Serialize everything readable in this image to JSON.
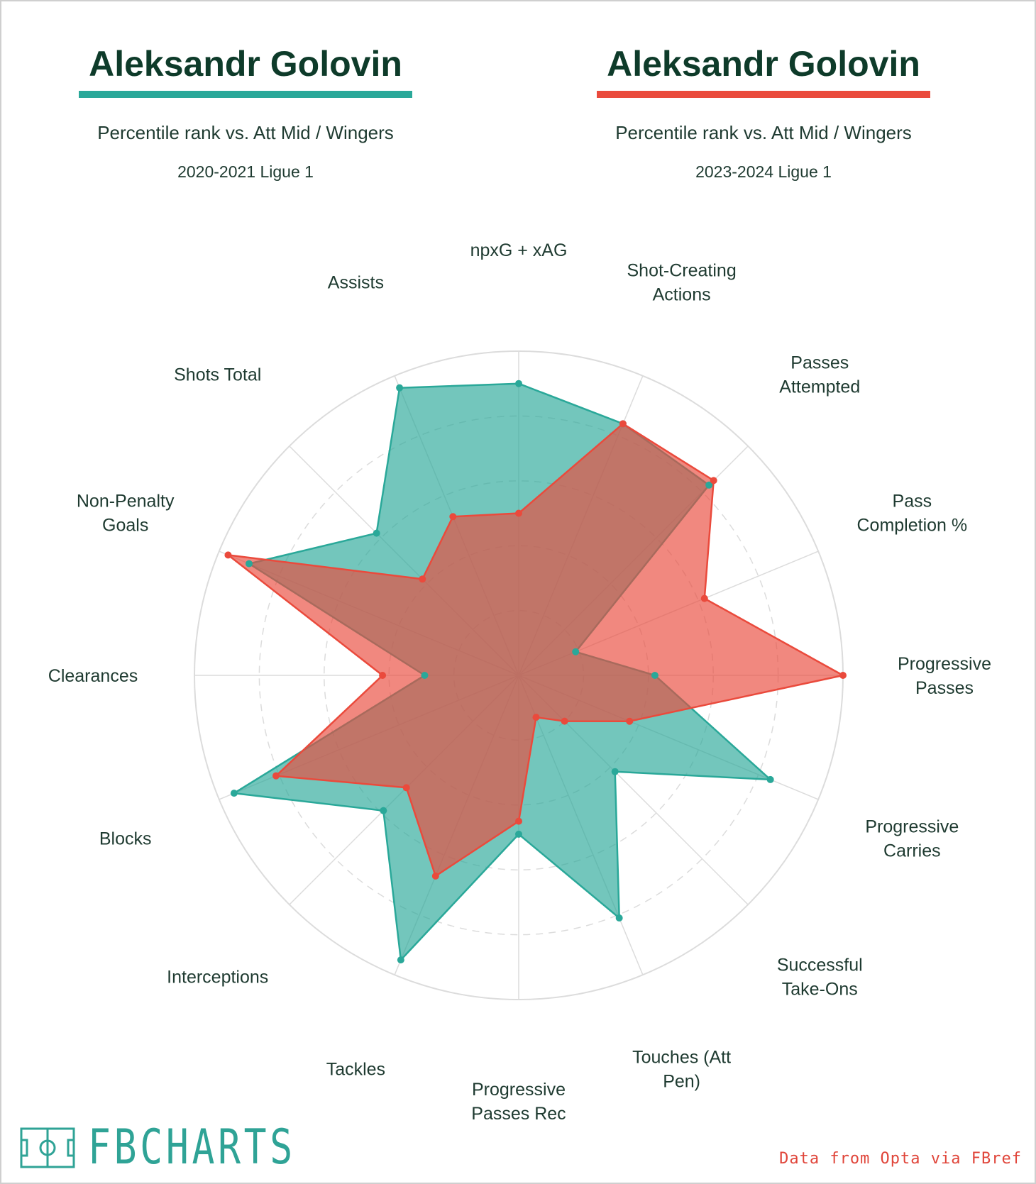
{
  "colors": {
    "series1": "#2aa899",
    "series2": "#ea4a3c",
    "title": "#0e3b2a",
    "grid": "#dcdcdc",
    "label": "#1e3a30",
    "credit": "#e0453a"
  },
  "left_header": {
    "name": "Aleksandr Golovin",
    "subtitle": "Percentile rank vs. Att Mid / Wingers",
    "season": "2020-2021 Ligue 1"
  },
  "right_header": {
    "name": "Aleksandr Golovin",
    "subtitle": "Percentile rank vs. Att Mid / Wingers",
    "season": "2023-2024 Ligue 1"
  },
  "brand": {
    "text": "FBCHARTS",
    "icon": "pitch-icon"
  },
  "credit": "Data from Opta via FBref",
  "chart_data": {
    "type": "radar",
    "rmax": 100,
    "grid": true,
    "categories": [
      "npxG + xAG",
      "Shot-Creating Actions",
      "Passes Attempted",
      "Pass Completion %",
      "Progressive Passes",
      "Progressive Carries",
      "Successful Take-Ons",
      "Touches (Att Pen)",
      "Progressive Passes Rec",
      "Tackles",
      "Interceptions",
      "Blocks",
      "Clearances",
      "Non-Penalty Goals",
      "Shots Total",
      "Assists"
    ],
    "series": [
      {
        "name": "2020-2021 Ligue 1",
        "values": [
          90,
          84,
          83,
          19,
          42,
          84,
          42,
          81,
          49,
          95,
          59,
          95,
          29,
          90,
          62,
          96
        ]
      },
      {
        "name": "2023-2024 Ligue 1",
        "values": [
          50,
          84,
          85,
          62,
          100,
          37,
          20,
          14,
          45,
          67,
          49,
          81,
          42,
          97,
          42,
          53
        ]
      }
    ]
  }
}
